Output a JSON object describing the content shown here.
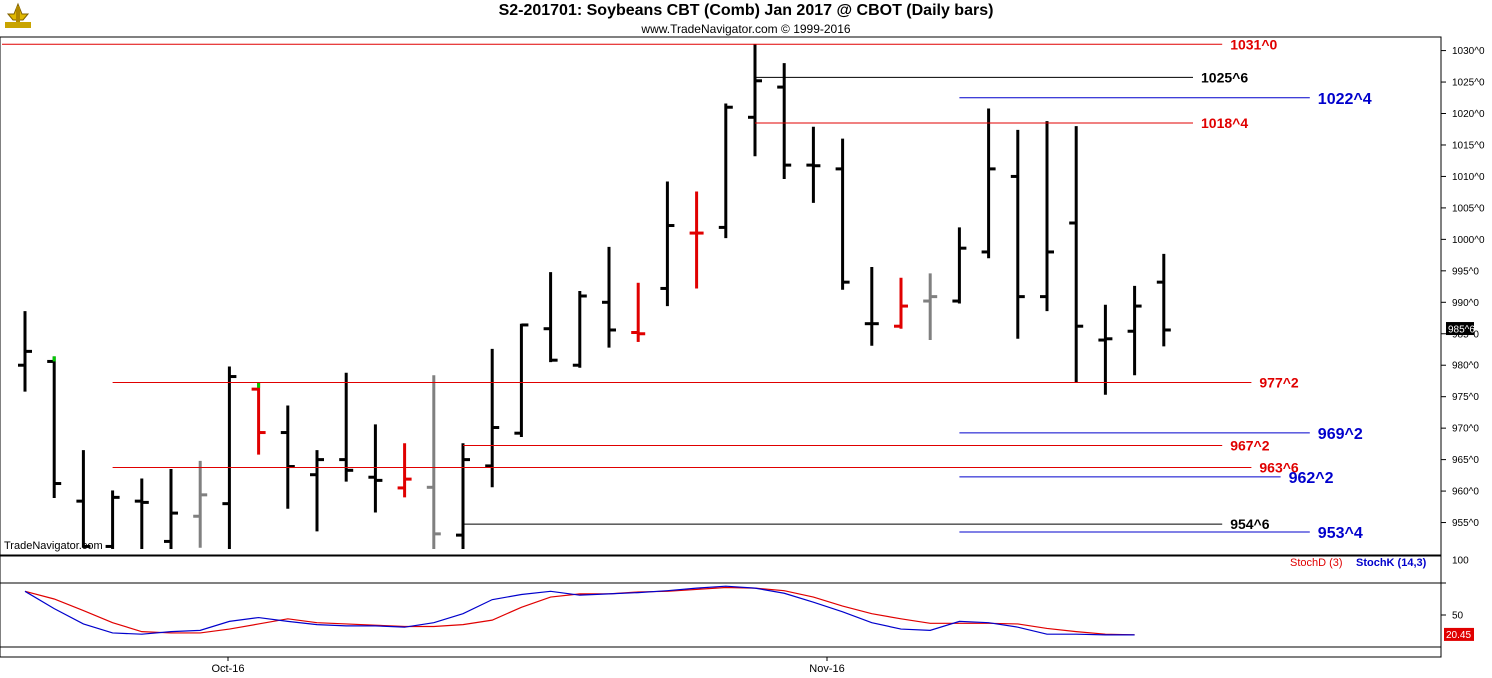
{
  "header": {
    "title": "S2-201701:  Soybeans CBT (Comb) Jan 2017 @ CBOT  (Daily bars)",
    "subtitle": "www.TradeNavigator.com © 1999-2016",
    "watermark": "TradeNavigator.com",
    "logo_icon": "trade-navigator-logo"
  },
  "colors": {
    "bar_default": "#000000",
    "bar_down": "#e00000",
    "bar_grey": "#808080",
    "bar_green_tick": "#00cc00",
    "level_red": "#cc0000",
    "level_black": "#000000",
    "level_blue": "#0000cc",
    "stoch_d": "#e00000",
    "stoch_k": "#0000cc"
  },
  "chart_data": [
    {
      "type": "ohlc",
      "title": "S2-201701:  Soybeans CBT (Comb) Jan 2017 @ CBOT  (Daily bars)",
      "xlabel": "",
      "ylabel": "",
      "ylim": [
        950,
        1032
      ],
      "x_tick_labels": [
        "Oct-16",
        "Nov-16"
      ],
      "y_tick_labels": [
        "1030^0",
        "1025^0",
        "1020^0",
        "1015^0",
        "1010^0",
        "1005^0",
        "1000^0",
        "995^0",
        "990^0",
        "985^0",
        "980^0",
        "975^0",
        "970^0",
        "965^0",
        "960^0",
        "955^0"
      ],
      "y_ticks": [
        1030,
        1025,
        1020,
        1015,
        1010,
        1005,
        1000,
        995,
        990,
        985,
        980,
        975,
        970,
        965,
        960,
        955
      ],
      "current_price_label": "985^6",
      "current_price": 985.75,
      "bars": [
        {
          "o": 980.0,
          "h": 988.6,
          "l": 975.8,
          "c": 982.2,
          "color": "black"
        },
        {
          "o": 980.6,
          "h": 981.4,
          "l": 958.9,
          "c": 961.2,
          "color": "black",
          "tick": "green"
        },
        {
          "o": 958.4,
          "h": 966.5,
          "l": 951.0,
          "c": 951.2,
          "color": "black"
        },
        {
          "o": 951.2,
          "h": 960.1,
          "l": 950.8,
          "c": 959.0,
          "color": "black"
        },
        {
          "o": 958.4,
          "h": 962.0,
          "l": 950.8,
          "c": 958.2,
          "color": "black"
        },
        {
          "o": 952.0,
          "h": 963.5,
          "l": 950.8,
          "c": 956.5,
          "color": "black"
        },
        {
          "o": 956.0,
          "h": 964.8,
          "l": 951.0,
          "c": 959.4,
          "color": "grey"
        },
        {
          "o": 958.0,
          "h": 979.8,
          "l": 950.8,
          "c": 978.2,
          "color": "black"
        },
        {
          "o": 976.2,
          "h": 977.2,
          "l": 965.8,
          "c": 969.3,
          "color": "red",
          "tick": "green"
        },
        {
          "o": 969.3,
          "h": 973.6,
          "l": 957.2,
          "c": 963.9,
          "color": "black"
        },
        {
          "o": 962.6,
          "h": 966.5,
          "l": 953.6,
          "c": 965.0,
          "color": "black"
        },
        {
          "o": 965.0,
          "h": 978.8,
          "l": 961.5,
          "c": 963.3,
          "color": "black"
        },
        {
          "o": 962.2,
          "h": 970.6,
          "l": 956.6,
          "c": 961.7,
          "color": "black"
        },
        {
          "o": 960.5,
          "h": 967.6,
          "l": 959.0,
          "c": 961.9,
          "color": "red"
        },
        {
          "o": 960.6,
          "h": 978.4,
          "l": 950.8,
          "c": 953.2,
          "color": "grey"
        },
        {
          "o": 953.0,
          "h": 967.6,
          "l": 950.8,
          "c": 965.0,
          "color": "black"
        },
        {
          "o": 964.0,
          "h": 982.6,
          "l": 960.6,
          "c": 970.1,
          "color": "black"
        },
        {
          "o": 969.2,
          "h": 986.6,
          "l": 968.6,
          "c": 986.4,
          "color": "black"
        },
        {
          "o": 985.8,
          "h": 994.8,
          "l": 980.5,
          "c": 980.8,
          "color": "black"
        },
        {
          "o": 980.0,
          "h": 991.8,
          "l": 979.6,
          "c": 991.0,
          "color": "black"
        },
        {
          "o": 990.0,
          "h": 998.8,
          "l": 982.8,
          "c": 985.6,
          "color": "black"
        },
        {
          "o": 985.2,
          "h": 993.1,
          "l": 983.7,
          "c": 985.0,
          "color": "red"
        },
        {
          "o": 992.2,
          "h": 1009.2,
          "l": 989.4,
          "c": 1002.2,
          "color": "black"
        },
        {
          "o": 1001.0,
          "h": 1007.6,
          "l": 992.2,
          "c": 1001.0,
          "color": "red"
        },
        {
          "o": 1001.9,
          "h": 1021.6,
          "l": 1000.2,
          "c": 1021.0,
          "color": "black"
        },
        {
          "o": 1019.4,
          "h": 1031.0,
          "l": 1013.2,
          "c": 1025.2,
          "color": "black"
        },
        {
          "o": 1024.2,
          "h": 1028.0,
          "l": 1009.6,
          "c": 1011.8,
          "color": "black"
        },
        {
          "o": 1011.8,
          "h": 1017.9,
          "l": 1005.8,
          "c": 1011.7,
          "color": "black"
        },
        {
          "o": 1011.2,
          "h": 1016.0,
          "l": 992.0,
          "c": 993.2,
          "color": "black"
        },
        {
          "o": 986.6,
          "h": 995.6,
          "l": 983.1,
          "c": 986.6,
          "color": "black"
        },
        {
          "o": 986.2,
          "h": 993.9,
          "l": 985.8,
          "c": 989.4,
          "color": "red"
        },
        {
          "o": 990.2,
          "h": 994.6,
          "l": 984.0,
          "c": 990.9,
          "color": "grey"
        },
        {
          "o": 990.2,
          "h": 1001.9,
          "l": 989.8,
          "c": 998.6,
          "color": "black"
        },
        {
          "o": 998.0,
          "h": 1020.8,
          "l": 997.0,
          "c": 1011.2,
          "color": "black"
        },
        {
          "o": 1010.0,
          "h": 1017.4,
          "l": 984.2,
          "c": 990.9,
          "color": "black"
        },
        {
          "o": 990.9,
          "h": 1018.8,
          "l": 988.6,
          "c": 998.0,
          "color": "black"
        },
        {
          "o": 1002.6,
          "h": 1018.0,
          "l": 977.2,
          "c": 986.2,
          "color": "black"
        },
        {
          "o": 984.0,
          "h": 989.6,
          "l": 975.3,
          "c": 984.2,
          "color": "black"
        },
        {
          "o": 985.4,
          "h": 992.6,
          "l": 978.4,
          "c": 989.4,
          "color": "black"
        },
        {
          "o": 993.2,
          "h": 997.7,
          "l": 983.0,
          "c": 985.6,
          "color": "black"
        }
      ],
      "levels": [
        {
          "label": "1031^0",
          "value": 1031.0,
          "color": "red",
          "from_bar": -1,
          "to_bar": 41
        },
        {
          "label": "1025^6",
          "value": 1025.75,
          "color": "black",
          "from_bar": 25,
          "to_bar": 40
        },
        {
          "label": "1022^4",
          "value": 1022.5,
          "color": "blue",
          "from_bar": 32,
          "to_bar": 44
        },
        {
          "label": "1018^4",
          "value": 1018.5,
          "color": "red",
          "from_bar": 25,
          "to_bar": 40
        },
        {
          "label": "977^2",
          "value": 977.25,
          "color": "red",
          "from_bar": 3,
          "to_bar": 42
        },
        {
          "label": "969^2",
          "value": 969.25,
          "color": "blue",
          "from_bar": 32,
          "to_bar": 44
        },
        {
          "label": "967^2",
          "value": 967.25,
          "color": "red",
          "from_bar": 15,
          "to_bar": 41
        },
        {
          "label": "963^6",
          "value": 963.75,
          "color": "red",
          "from_bar": 3,
          "to_bar": 42
        },
        {
          "label": "962^2",
          "value": 962.25,
          "color": "blue",
          "from_bar": 32,
          "to_bar": 43
        },
        {
          "label": "954^6",
          "value": 954.75,
          "color": "black",
          "from_bar": 15,
          "to_bar": 41
        },
        {
          "label": "953^4",
          "value": 953.5,
          "color": "blue",
          "from_bar": 32,
          "to_bar": 44
        }
      ]
    },
    {
      "type": "line",
      "title": "",
      "ylim": [
        0,
        100
      ],
      "y_tick_labels": [
        "100",
        "50"
      ],
      "y_ticks": [
        100,
        50
      ],
      "current_value_label": "20.45",
      "current_value": 20.45,
      "series": [
        {
          "name": "StochD (3)",
          "color": "red",
          "values": [
            87,
            75,
            57,
            38,
            24,
            22,
            22,
            28,
            36,
            44,
            38,
            36,
            34,
            32,
            32,
            35,
            42,
            62,
            78,
            83,
            83,
            86,
            87,
            90,
            93,
            92,
            88,
            78,
            64,
            52,
            44,
            37,
            37,
            37,
            36,
            29,
            24,
            20,
            19
          ]
        },
        {
          "name": "StochK (14,3)",
          "color": "blue",
          "values": [
            87,
            60,
            36,
            22,
            20,
            24,
            26,
            40,
            46,
            40,
            35,
            33,
            33,
            31,
            38,
            52,
            74,
            82,
            87,
            81,
            83,
            85,
            88,
            92,
            95,
            92,
            84,
            70,
            55,
            38,
            28,
            26,
            40,
            38,
            31,
            20,
            20,
            19,
            19
          ]
        }
      ]
    }
  ]
}
